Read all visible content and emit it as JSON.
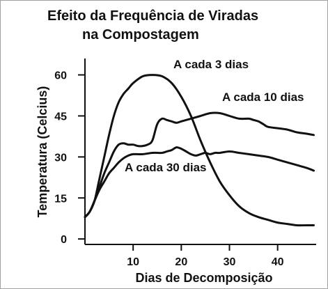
{
  "chart_data": {
    "type": "line",
    "title": [
      "Efeito da Frequência de Viradas",
      "na Compostagem"
    ],
    "xlabel": "Dias de Decomposição",
    "ylabel": "Temperatura (Celcius)",
    "xlim": [
      0,
      48
    ],
    "ylim": [
      -2,
      66
    ],
    "xticks": [
      10,
      20,
      30,
      40
    ],
    "yticks": [
      0,
      15,
      30,
      45,
      60
    ],
    "grid": false,
    "legend": "inline labels next to curves",
    "series": [
      {
        "name": "A cada 3 dias",
        "x": [
          0,
          1,
          2,
          3,
          4,
          5,
          6,
          7,
          8,
          9,
          10,
          12,
          14,
          16,
          18,
          20,
          22,
          24,
          26,
          28,
          30,
          32,
          34,
          36,
          38,
          40,
          42,
          44,
          46,
          47.5
        ],
        "y": [
          8,
          10,
          14,
          22,
          30,
          38,
          45,
          50,
          53,
          55,
          57,
          59.5,
          60,
          59.5,
          57,
          52,
          45,
          36,
          28,
          21,
          16,
          12,
          9.5,
          8,
          7,
          6,
          5.5,
          5,
          5,
          5
        ]
      },
      {
        "name": "A cada 10 dias",
        "x": [
          0,
          1,
          2,
          3,
          4,
          5,
          6,
          7,
          8,
          9,
          10,
          11,
          12,
          13,
          14,
          15,
          16,
          17,
          18,
          19,
          20,
          22,
          24,
          26,
          28,
          30,
          32,
          34,
          35,
          36,
          37,
          38,
          40,
          42,
          44,
          46,
          47.5
        ],
        "y": [
          8,
          10,
          14,
          19,
          24,
          28,
          32,
          34.5,
          35,
          34.5,
          34.5,
          34,
          34,
          34.5,
          36,
          42,
          44,
          43.5,
          43,
          42.5,
          43,
          44,
          45,
          46,
          46,
          45,
          44,
          44,
          43.5,
          43,
          42,
          41,
          40.5,
          40,
          39,
          38.5,
          38
        ]
      },
      {
        "name": "A cada 30 dias",
        "x": [
          0,
          1,
          2,
          3,
          4,
          5,
          6,
          7,
          8,
          9,
          10,
          12,
          14,
          16,
          17,
          18,
          19,
          20,
          21,
          22,
          23,
          24,
          25,
          26,
          27,
          28,
          30,
          32,
          34,
          36,
          38,
          40,
          42,
          44,
          46,
          47.5
        ],
        "y": [
          8,
          10,
          14,
          18,
          21,
          24,
          26,
          28,
          29.5,
          30.5,
          31,
          31,
          31.5,
          31.5,
          32,
          32.5,
          33.5,
          33,
          32,
          31,
          30.5,
          31,
          31.5,
          31,
          31.5,
          31.5,
          32,
          31.5,
          31,
          30.5,
          30,
          29,
          28,
          27,
          26,
          25
        ]
      }
    ],
    "annotations": [
      {
        "text": "A cada 3 dias",
        "series": 0
      },
      {
        "text": "A cada 10 dias",
        "series": 1
      },
      {
        "text": "A cada 30 dias",
        "series": 2
      }
    ]
  }
}
